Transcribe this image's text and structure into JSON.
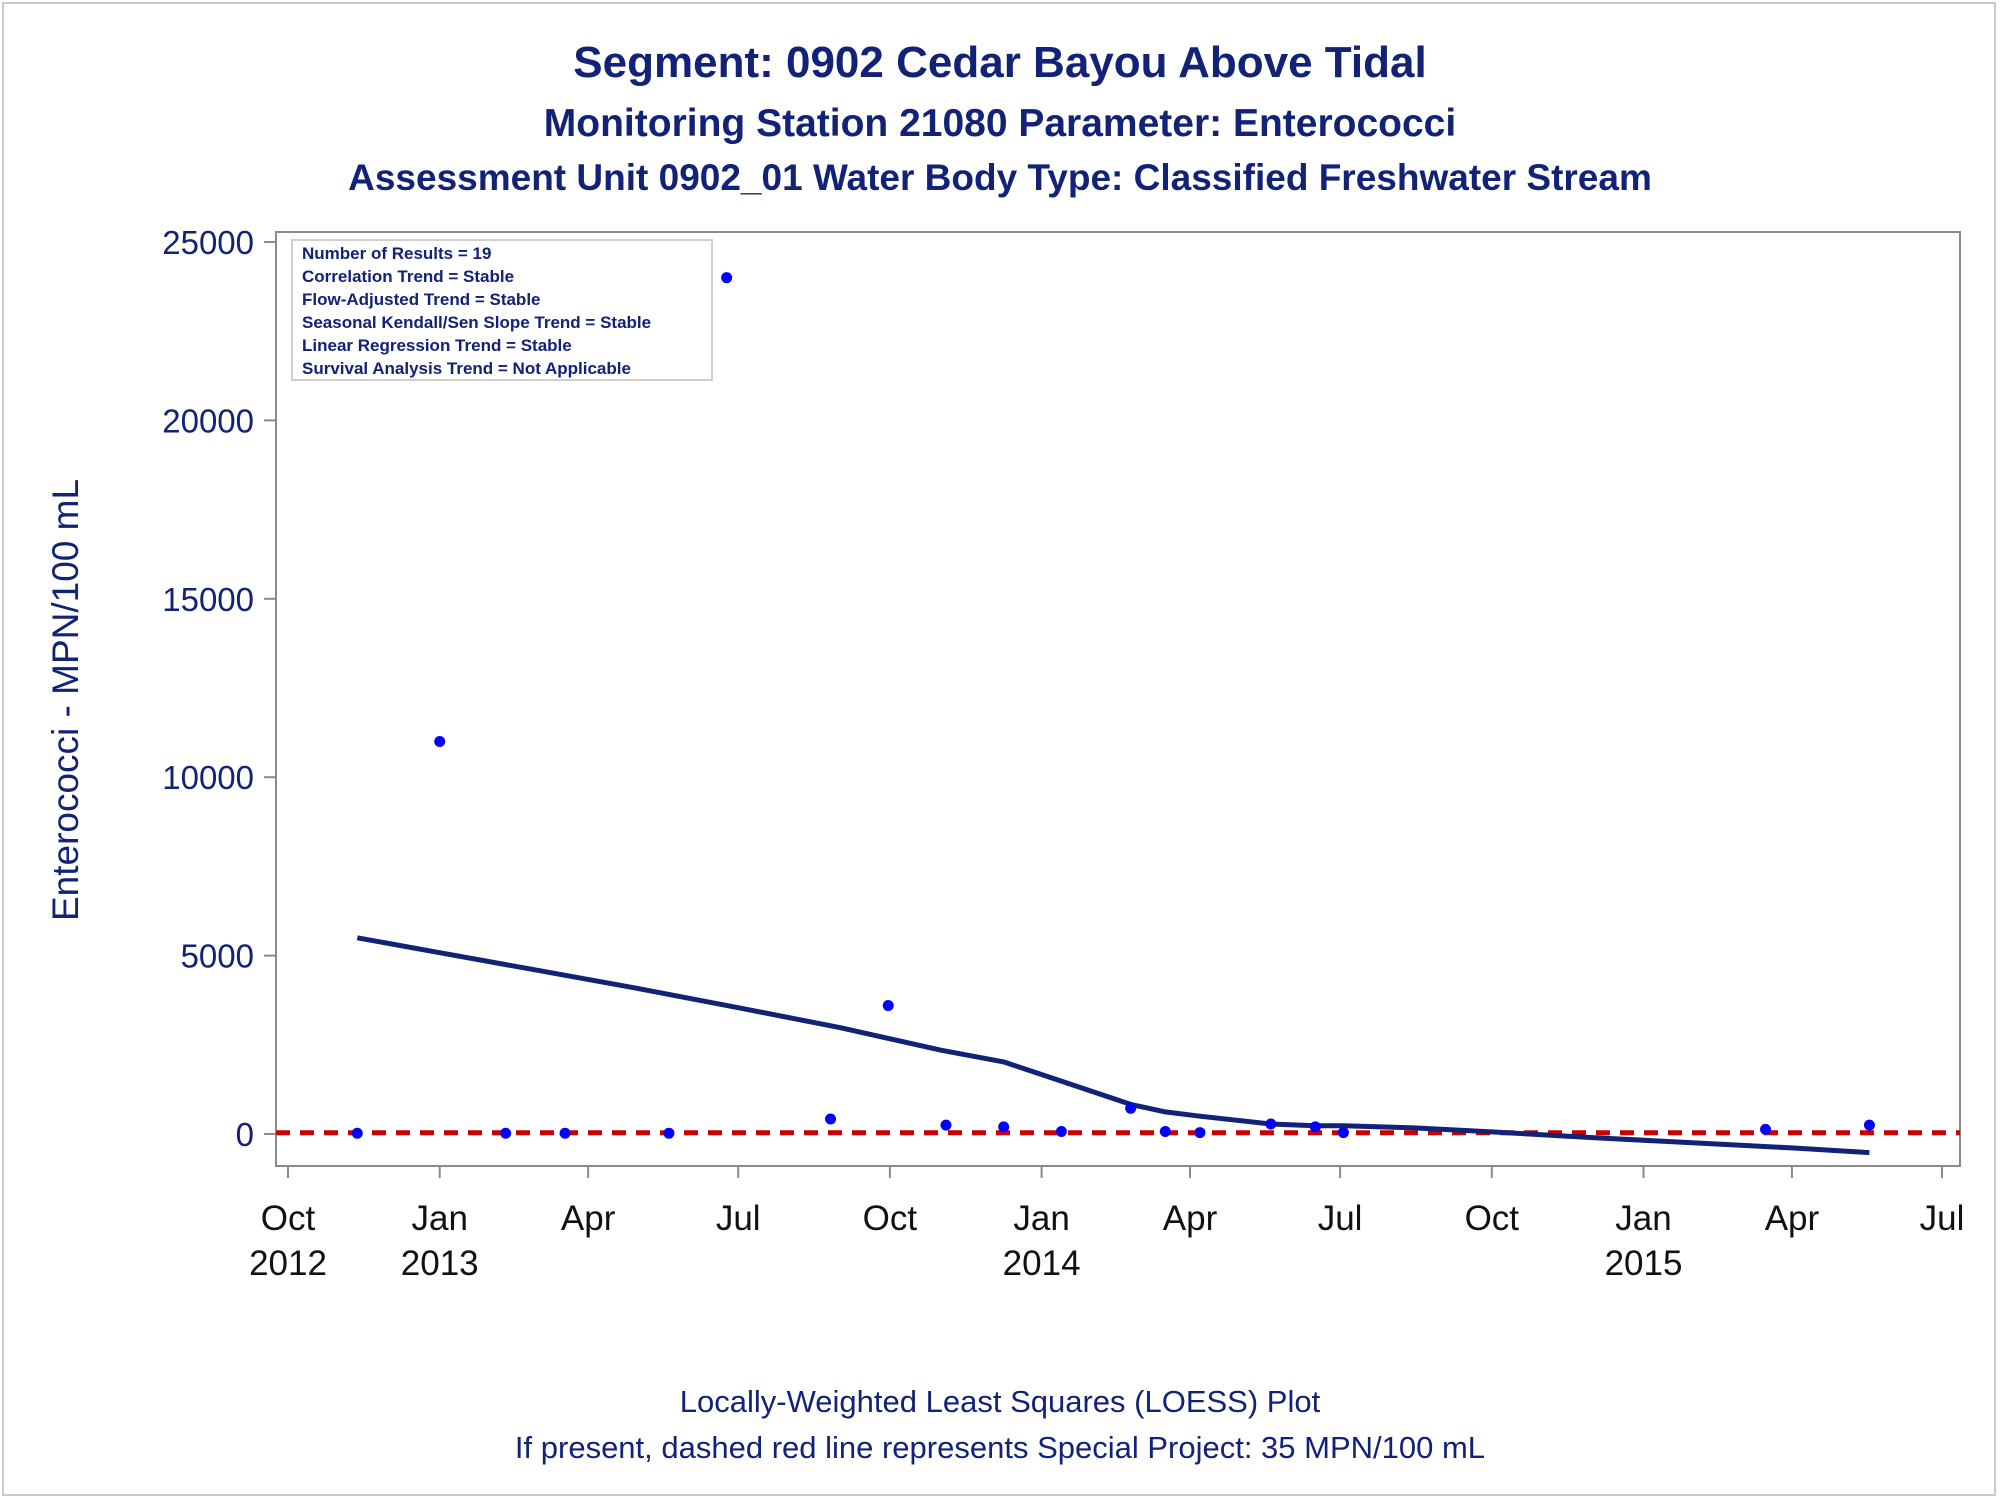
{
  "chart_data": {
    "type": "scatter",
    "title": "Segment: 0902  Cedar Bayou Above Tidal",
    "subtitle": "Monitoring Station 21080 Parameter: Enterococci",
    "subtitle2": "Assessment Unit 0902_01   Water Body Type: Classified Freshwater Stream",
    "xlabel": "",
    "ylabel": "Enterococci - MPN/100 mL",
    "ylim": [
      -400,
      25000
    ],
    "xlim": [
      "2012-10-01",
      "2015-07-01"
    ],
    "y_ticks": [
      0,
      5000,
      10000,
      15000,
      20000,
      25000
    ],
    "x_ticks": [
      {
        "date": "2012-10-01",
        "label": "Oct",
        "year": "2012"
      },
      {
        "date": "2013-01-01",
        "label": "Jan",
        "year": "2013"
      },
      {
        "date": "2013-04-01",
        "label": "Apr",
        "year": ""
      },
      {
        "date": "2013-07-01",
        "label": "Jul",
        "year": ""
      },
      {
        "date": "2013-10-01",
        "label": "Oct",
        "year": ""
      },
      {
        "date": "2014-01-01",
        "label": "Jan",
        "year": "2014"
      },
      {
        "date": "2014-04-01",
        "label": "Apr",
        "year": ""
      },
      {
        "date": "2014-07-01",
        "label": "Jul",
        "year": ""
      },
      {
        "date": "2014-10-01",
        "label": "Oct",
        "year": ""
      },
      {
        "date": "2015-01-01",
        "label": "Jan",
        "year": "2015"
      },
      {
        "date": "2015-04-01",
        "label": "Apr",
        "year": ""
      },
      {
        "date": "2015-07-01",
        "label": "Jul",
        "year": ""
      }
    ],
    "points": [
      {
        "x": "2012-11-12",
        "y": 20
      },
      {
        "x": "2013-01-01",
        "y": 11000
      },
      {
        "x": "2013-02-10",
        "y": 20
      },
      {
        "x": "2013-03-18",
        "y": 20
      },
      {
        "x": "2013-05-20",
        "y": 20
      },
      {
        "x": "2013-06-24",
        "y": 24000
      },
      {
        "x": "2013-08-26",
        "y": 420
      },
      {
        "x": "2013-09-30",
        "y": 3600
      },
      {
        "x": "2013-11-04",
        "y": 250
      },
      {
        "x": "2013-12-09",
        "y": 200
      },
      {
        "x": "2014-01-13",
        "y": 70
      },
      {
        "x": "2014-02-24",
        "y": 720
      },
      {
        "x": "2014-03-17",
        "y": 70
      },
      {
        "x": "2014-04-07",
        "y": 40
      },
      {
        "x": "2014-05-20",
        "y": 280
      },
      {
        "x": "2014-06-16",
        "y": 200
      },
      {
        "x": "2014-07-03",
        "y": 40
      },
      {
        "x": "2015-03-16",
        "y": 130
      },
      {
        "x": "2015-05-18",
        "y": 250
      }
    ],
    "loess": [
      {
        "x": "2012-11-12",
        "y": 5500
      },
      {
        "x": "2013-01-01",
        "y": 5080
      },
      {
        "x": "2013-03-01",
        "y": 4590
      },
      {
        "x": "2013-05-01",
        "y": 4080
      },
      {
        "x": "2013-07-01",
        "y": 3540
      },
      {
        "x": "2013-09-01",
        "y": 2980
      },
      {
        "x": "2013-11-01",
        "y": 2350
      },
      {
        "x": "2013-12-09",
        "y": 2020
      },
      {
        "x": "2014-01-15",
        "y": 1450
      },
      {
        "x": "2014-02-24",
        "y": 830
      },
      {
        "x": "2014-03-17",
        "y": 620
      },
      {
        "x": "2014-04-07",
        "y": 500
      },
      {
        "x": "2014-05-20",
        "y": 280
      },
      {
        "x": "2014-06-16",
        "y": 230
      },
      {
        "x": "2014-07-03",
        "y": 230
      },
      {
        "x": "2014-08-15",
        "y": 170
      },
      {
        "x": "2014-10-01",
        "y": 60
      },
      {
        "x": "2014-12-01",
        "y": -100
      },
      {
        "x": "2015-02-01",
        "y": -250
      },
      {
        "x": "2015-04-01",
        "y": -390
      },
      {
        "x": "2015-05-18",
        "y": -520
      }
    ],
    "reference_line": {
      "y": 35,
      "style": "dashed",
      "color": "#cc0000"
    },
    "colors": {
      "points": "#0000ff",
      "loess": "#112277",
      "text": "#112277",
      "axis": "#8a8a8a"
    },
    "grid": false,
    "legend_placement": "top-left",
    "stats_box": [
      "Number of Results = 19",
      "Correlation Trend = Stable",
      "Flow-Adjusted Trend = Stable",
      "Seasonal Kendall/Sen Slope Trend = Stable",
      "Linear Regression Trend = Stable",
      "Survival Analysis Trend = Not Applicable"
    ]
  },
  "footnotes": [
    "Locally-Weighted Least Squares (LOESS) Plot",
    "If present, dashed red line represents Special Project: 35 MPN/100 mL"
  ]
}
